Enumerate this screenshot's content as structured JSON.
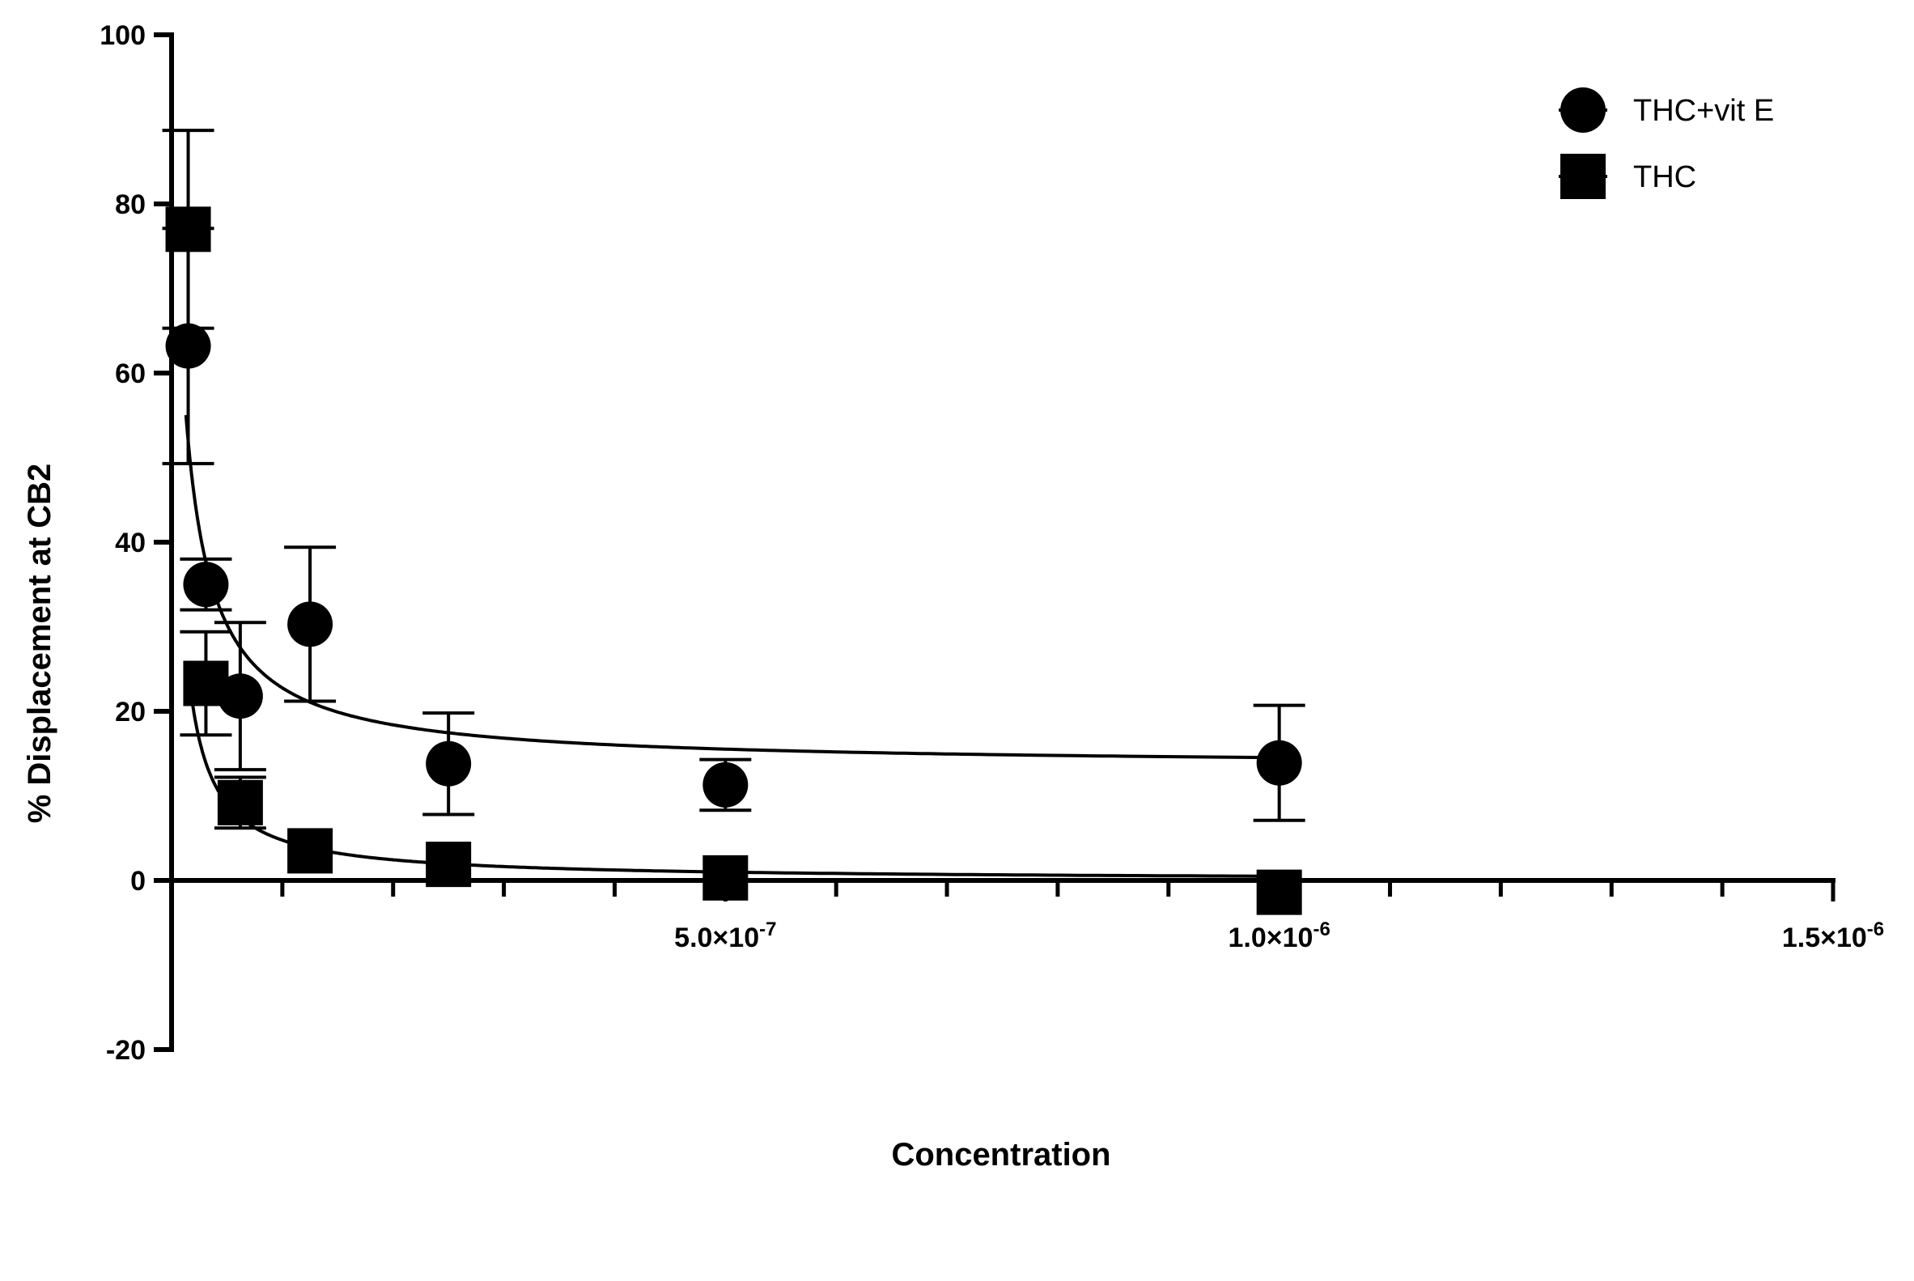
{
  "chart_data": {
    "type": "scatter",
    "xlabel": "Concentration",
    "ylabel": "% Displacement at CB2",
    "xlim": [
      0,
      1.5e-06
    ],
    "ylim": [
      -20,
      100
    ],
    "x_ticks": [
      {
        "value": 5e-07,
        "mantissa": "5.0×10",
        "exponent": "-7"
      },
      {
        "value": 1e-06,
        "mantissa": "1.0×10",
        "exponent": "-6"
      },
      {
        "value": 1.5e-06,
        "mantissa": "1.5×10",
        "exponent": "-6"
      }
    ],
    "y_ticks": [
      {
        "value": -20,
        "label": "-20"
      },
      {
        "value": 0,
        "label": "0"
      },
      {
        "value": 20,
        "label": "20"
      },
      {
        "value": 40,
        "label": "40"
      },
      {
        "value": 60,
        "label": "60"
      },
      {
        "value": 80,
        "label": "80"
      },
      {
        "value": 100,
        "label": "100"
      }
    ],
    "x_minor_tick_step": 1e-07,
    "legend_position": "top-right",
    "series": [
      {
        "name": "THC+vit E",
        "marker": "circle",
        "color": "#000000",
        "points": [
          {
            "x": 1.5e-08,
            "y": 63.2,
            "err": 13.9
          },
          {
            "x": 3.1e-08,
            "y": 35.0,
            "err": 3.0
          },
          {
            "x": 6.2e-08,
            "y": 21.8,
            "err": 8.7
          },
          {
            "x": 1.25e-07,
            "y": 30.3,
            "err": 9.1
          },
          {
            "x": 2.5e-07,
            "y": 13.8,
            "err": 6.0
          },
          {
            "x": 5e-07,
            "y": 11.3,
            "err": 3.0
          },
          {
            "x": 1e-06,
            "y": 13.9,
            "err": 6.8
          }
        ],
        "fit": {
          "bottom": 13.5,
          "top": 100,
          "ic50": 1.2e-08
        },
        "fit_xrange": [
          1.3e-08,
          1e-06
        ]
      },
      {
        "name": "THC",
        "marker": "square",
        "color": "#000000",
        "points": [
          {
            "x": 1.5e-08,
            "y": 77.0,
            "err": 11.7
          },
          {
            "x": 3.1e-08,
            "y": 23.3,
            "err": 6.1
          },
          {
            "x": 6.2e-08,
            "y": 9.2,
            "err": 3.0
          },
          {
            "x": 1.25e-07,
            "y": 3.5,
            "err": 0
          },
          {
            "x": 2.5e-07,
            "y": 1.9,
            "err": 0
          },
          {
            "x": 5e-07,
            "y": 0.3,
            "err": 0
          },
          {
            "x": 1e-06,
            "y": -1.4,
            "err": 0
          }
        ],
        "fit": {
          "bottom": 0,
          "top": 100,
          "ic50": 5e-09
        },
        "fit_xrange": [
          1.5e-08,
          1e-06
        ]
      }
    ]
  }
}
